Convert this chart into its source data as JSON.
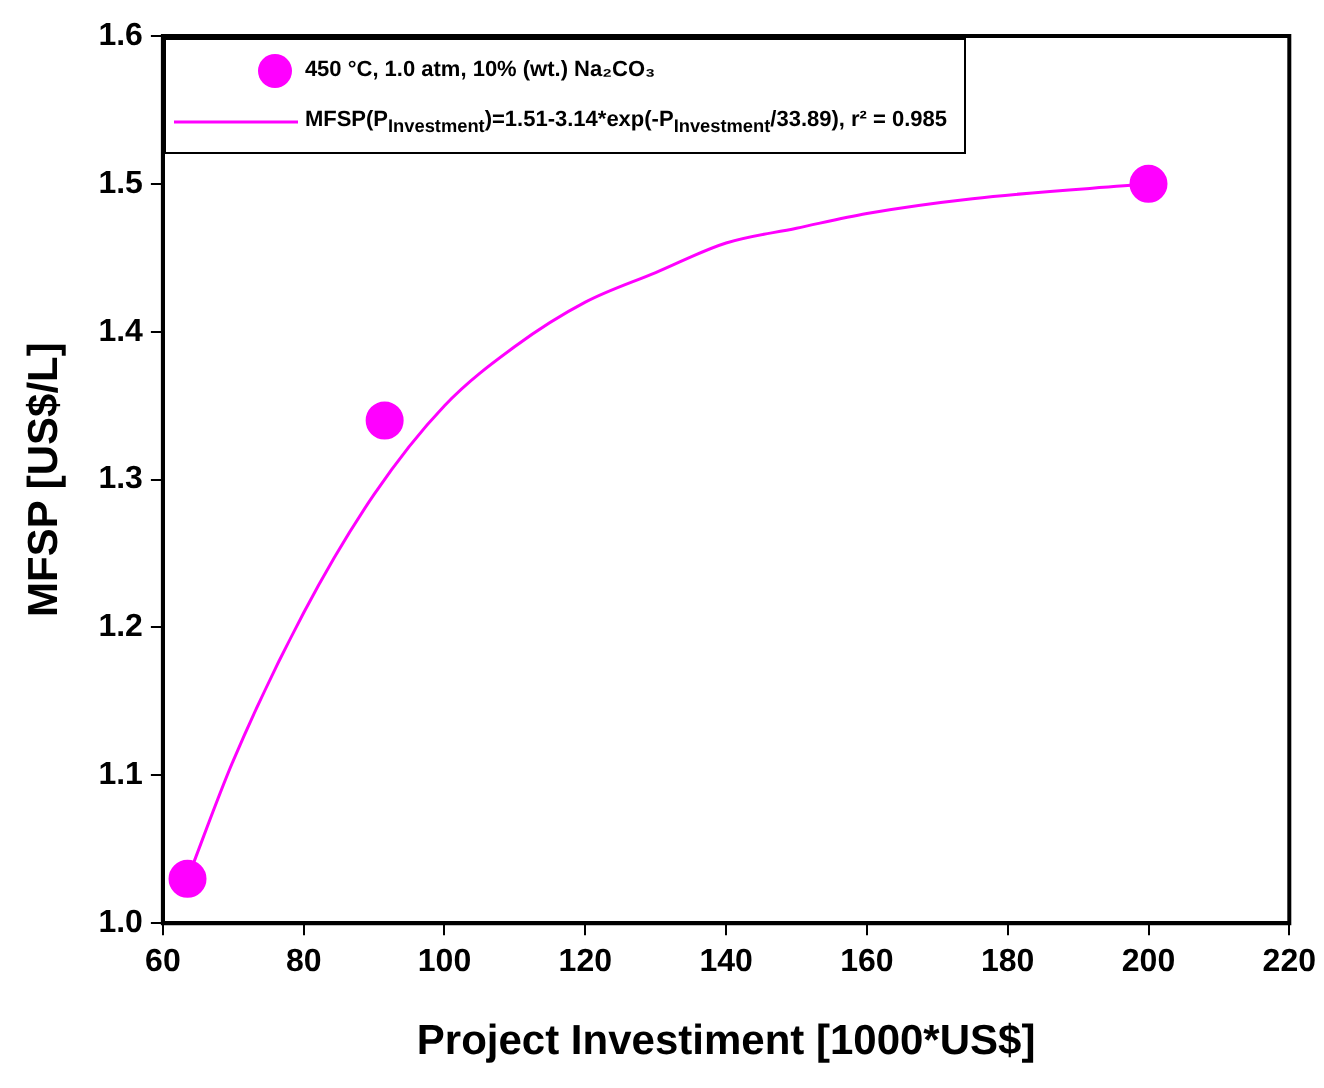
{
  "chart_data": {
    "type": "scatter",
    "xlabel": "Project Investiment [1000*US$]",
    "ylabel": "MFSP [US$/L]",
    "xlim": [
      60,
      220
    ],
    "xticks": [
      60,
      80,
      100,
      120,
      140,
      160,
      180,
      200,
      220
    ],
    "ylim": [
      1.0,
      1.6
    ],
    "yticks": [
      {
        "value": 1,
        "label": "1.0"
      },
      1.1,
      1.2,
      1.3,
      1.4,
      1.5,
      1.6
    ],
    "grid": false,
    "legend": "top left",
    "series": [
      {
        "name": "450 °C, 1.0 atm, 10% (wt.) Na₂CO₃",
        "marker": "circle",
        "color": "#ff00ff",
        "x": [
          63.5,
          91.5,
          200
        ],
        "values": [
          1.03,
          1.34,
          1.5
        ]
      },
      {
        "name": "MFSP(P$_{Investment}$)=1.51-3.14*exp(-P$_{Investment}$/33.89), r² = 0.985",
        "type": "line",
        "marker": "none",
        "color": "#ff00ff",
        "x": [
          63.5,
          70,
          80,
          90,
          100,
          110,
          120,
          130,
          140,
          150,
          160,
          175,
          200
        ],
        "values": [
          1.03,
          1.11,
          1.21,
          1.29,
          1.35,
          1.39,
          1.42,
          1.44,
          1.46,
          1.47,
          1.48,
          1.49,
          1.5
        ]
      }
    ]
  }
}
